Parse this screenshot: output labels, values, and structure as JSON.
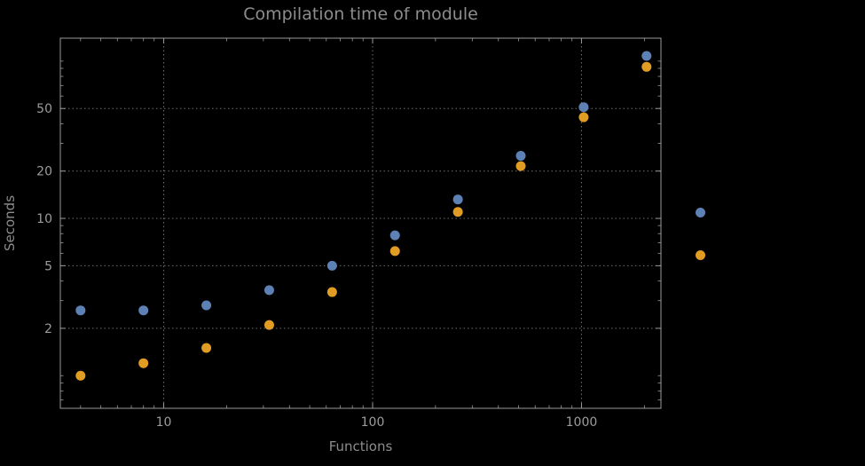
{
  "chart_data": {
    "type": "scatter",
    "title": "Compilation time of module",
    "xlabel": "Functions",
    "ylabel": "Seconds",
    "xscale": "log",
    "yscale": "log",
    "x": [
      4,
      8,
      16,
      32,
      64,
      128,
      256,
      512,
      1024,
      2048
    ],
    "series": [
      {
        "name": "blue",
        "color": "#5E81B5",
        "values": [
          2.6,
          2.6,
          2.8,
          3.5,
          5.0,
          7.8,
          13.2,
          25.0,
          51.0,
          108.0
        ]
      },
      {
        "name": "orange",
        "color": "#E19C24",
        "values": [
          1.0,
          1.2,
          1.5,
          2.1,
          3.4,
          6.2,
          11.0,
          21.5,
          44.0,
          92.0
        ]
      }
    ],
    "xticks": [
      10,
      100,
      1000
    ],
    "yticks": [
      2,
      5,
      10,
      20,
      50
    ],
    "xlim": [
      3.2,
      2400
    ],
    "ylim": [
      0.62,
      140
    ],
    "grid": "dotted",
    "legend_position": "right",
    "legend": {
      "markers": [
        {
          "series": "blue",
          "color": "#5E81B5"
        },
        {
          "series": "orange",
          "color": "#E19C24"
        }
      ]
    }
  },
  "colors": {
    "background": "#000000",
    "frame": "#9a9a9a",
    "grid": "#6e6e6e",
    "tick_label": "#9c9c9c",
    "point_blue": "#5E81B5",
    "point_orange": "#E19C24"
  }
}
